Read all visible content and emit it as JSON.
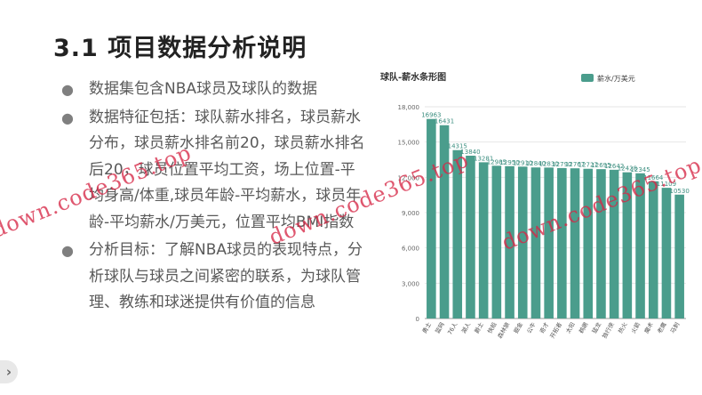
{
  "slide": {
    "title": "3.1 项目数据分析说明",
    "bullets": [
      "数据集包含NBA球员及球队的数据",
      "数据特征包括：球队薪水排名，球员薪水分布，球员薪水排名前20，球员薪水排名后20，球员位置平均工资，场上位置-平均身高/体重,球员年龄-平均薪水，球员年龄-平均薪水/万美元，位置平均BMI指数",
      "分析目标：了解NBA球员的表现特点，分析球队与球员之间紧密的联系，为球队管理、教练和球迷提供有价值的信息"
    ],
    "bullet_icon": "bullet-dot-icon"
  },
  "watermark": {
    "text1": "down.code365.top",
    "text2": "down.code365.top",
    "text3": "down.code365.top",
    "color": "#d62846"
  },
  "nav": {
    "icon": "chevron-right-icon",
    "glyph": "›"
  },
  "chart_data": {
    "type": "bar",
    "title": "球队-薪水条形图",
    "legend": "薪水/万美元",
    "legend_position": "top-right",
    "bar_color": "#4a9d8c",
    "ylim": [
      0,
      18000
    ],
    "yticks": [
      "0",
      "3,000",
      "6,000",
      "9,000",
      "12,000",
      "15,000",
      "18,000"
    ],
    "categories": [
      "勇士",
      "篮网",
      "76人",
      "湖人",
      "爵士",
      "快船",
      "森林狼",
      "掘金",
      "公牛",
      "奇才",
      "开拓者",
      "太阳",
      "鹈鹕",
      "猛龙",
      "独行侠",
      "热火",
      "火箭",
      "魔术",
      "老鹰",
      "马刺"
    ],
    "values": [
      16963,
      16431,
      14315,
      13840,
      13281,
      12985,
      12950,
      12910,
      12840,
      12830,
      12790,
      12767,
      12727,
      12695,
      12642,
      12428,
      12345,
      11664,
      11109,
      10530
    ],
    "labels": [
      "16963",
      "16431",
      "14315",
      "13840",
      "13281",
      "12985",
      "12950",
      "12910",
      "12840",
      "12830",
      "12790",
      "12767",
      "12727",
      "12695",
      "12642",
      "12428",
      "12345",
      "11664",
      "11109",
      "10530"
    ]
  }
}
